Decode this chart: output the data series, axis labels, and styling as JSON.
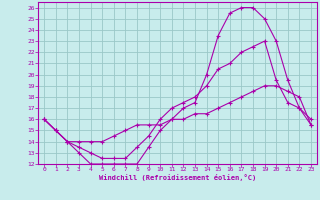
{
  "xlabel": "Windchill (Refroidissement éolien,°C)",
  "bg_color": "#c8ecec",
  "grid_color": "#9ac8c8",
  "line_color": "#aa00aa",
  "xlim": [
    -0.5,
    23.5
  ],
  "ylim": [
    12,
    26.5
  ],
  "xticks": [
    0,
    1,
    2,
    3,
    4,
    5,
    6,
    7,
    8,
    9,
    10,
    11,
    12,
    13,
    14,
    15,
    16,
    17,
    18,
    19,
    20,
    21,
    22,
    23
  ],
  "yticks": [
    12,
    13,
    14,
    15,
    16,
    17,
    18,
    19,
    20,
    21,
    22,
    23,
    24,
    25,
    26
  ],
  "line1_x": [
    0,
    1,
    2,
    3,
    4,
    5,
    6,
    7,
    8,
    9,
    10,
    11,
    12,
    13,
    14,
    15,
    16,
    17,
    18,
    19,
    20,
    21,
    22,
    23
  ],
  "line1_y": [
    16,
    15,
    14,
    13,
    12,
    12,
    12,
    12,
    12,
    13.5,
    15,
    16,
    17,
    17.5,
    20,
    23.5,
    25.5,
    26,
    26,
    25,
    23,
    19.5,
    17,
    16
  ],
  "line2_x": [
    0,
    1,
    2,
    3,
    4,
    5,
    6,
    7,
    8,
    9,
    10,
    11,
    12,
    13,
    14,
    15,
    16,
    17,
    18,
    19,
    20,
    21,
    22,
    23
  ],
  "line2_y": [
    16,
    15,
    14,
    13.5,
    13,
    12.5,
    12.5,
    12.5,
    13.5,
    14.5,
    16,
    17,
    17.5,
    18,
    19,
    20.5,
    21,
    22,
    22.5,
    23,
    19.5,
    17.5,
    17,
    15.5
  ],
  "line3_x": [
    0,
    1,
    2,
    3,
    4,
    5,
    6,
    7,
    8,
    9,
    10,
    11,
    12,
    13,
    14,
    15,
    16,
    17,
    18,
    19,
    20,
    21,
    22,
    23
  ],
  "line3_y": [
    16,
    15,
    14,
    14,
    14,
    14,
    14.5,
    15,
    15.5,
    15.5,
    15.5,
    16,
    16,
    16.5,
    16.5,
    17,
    17.5,
    18,
    18.5,
    19,
    19,
    18.5,
    18,
    15.5
  ]
}
